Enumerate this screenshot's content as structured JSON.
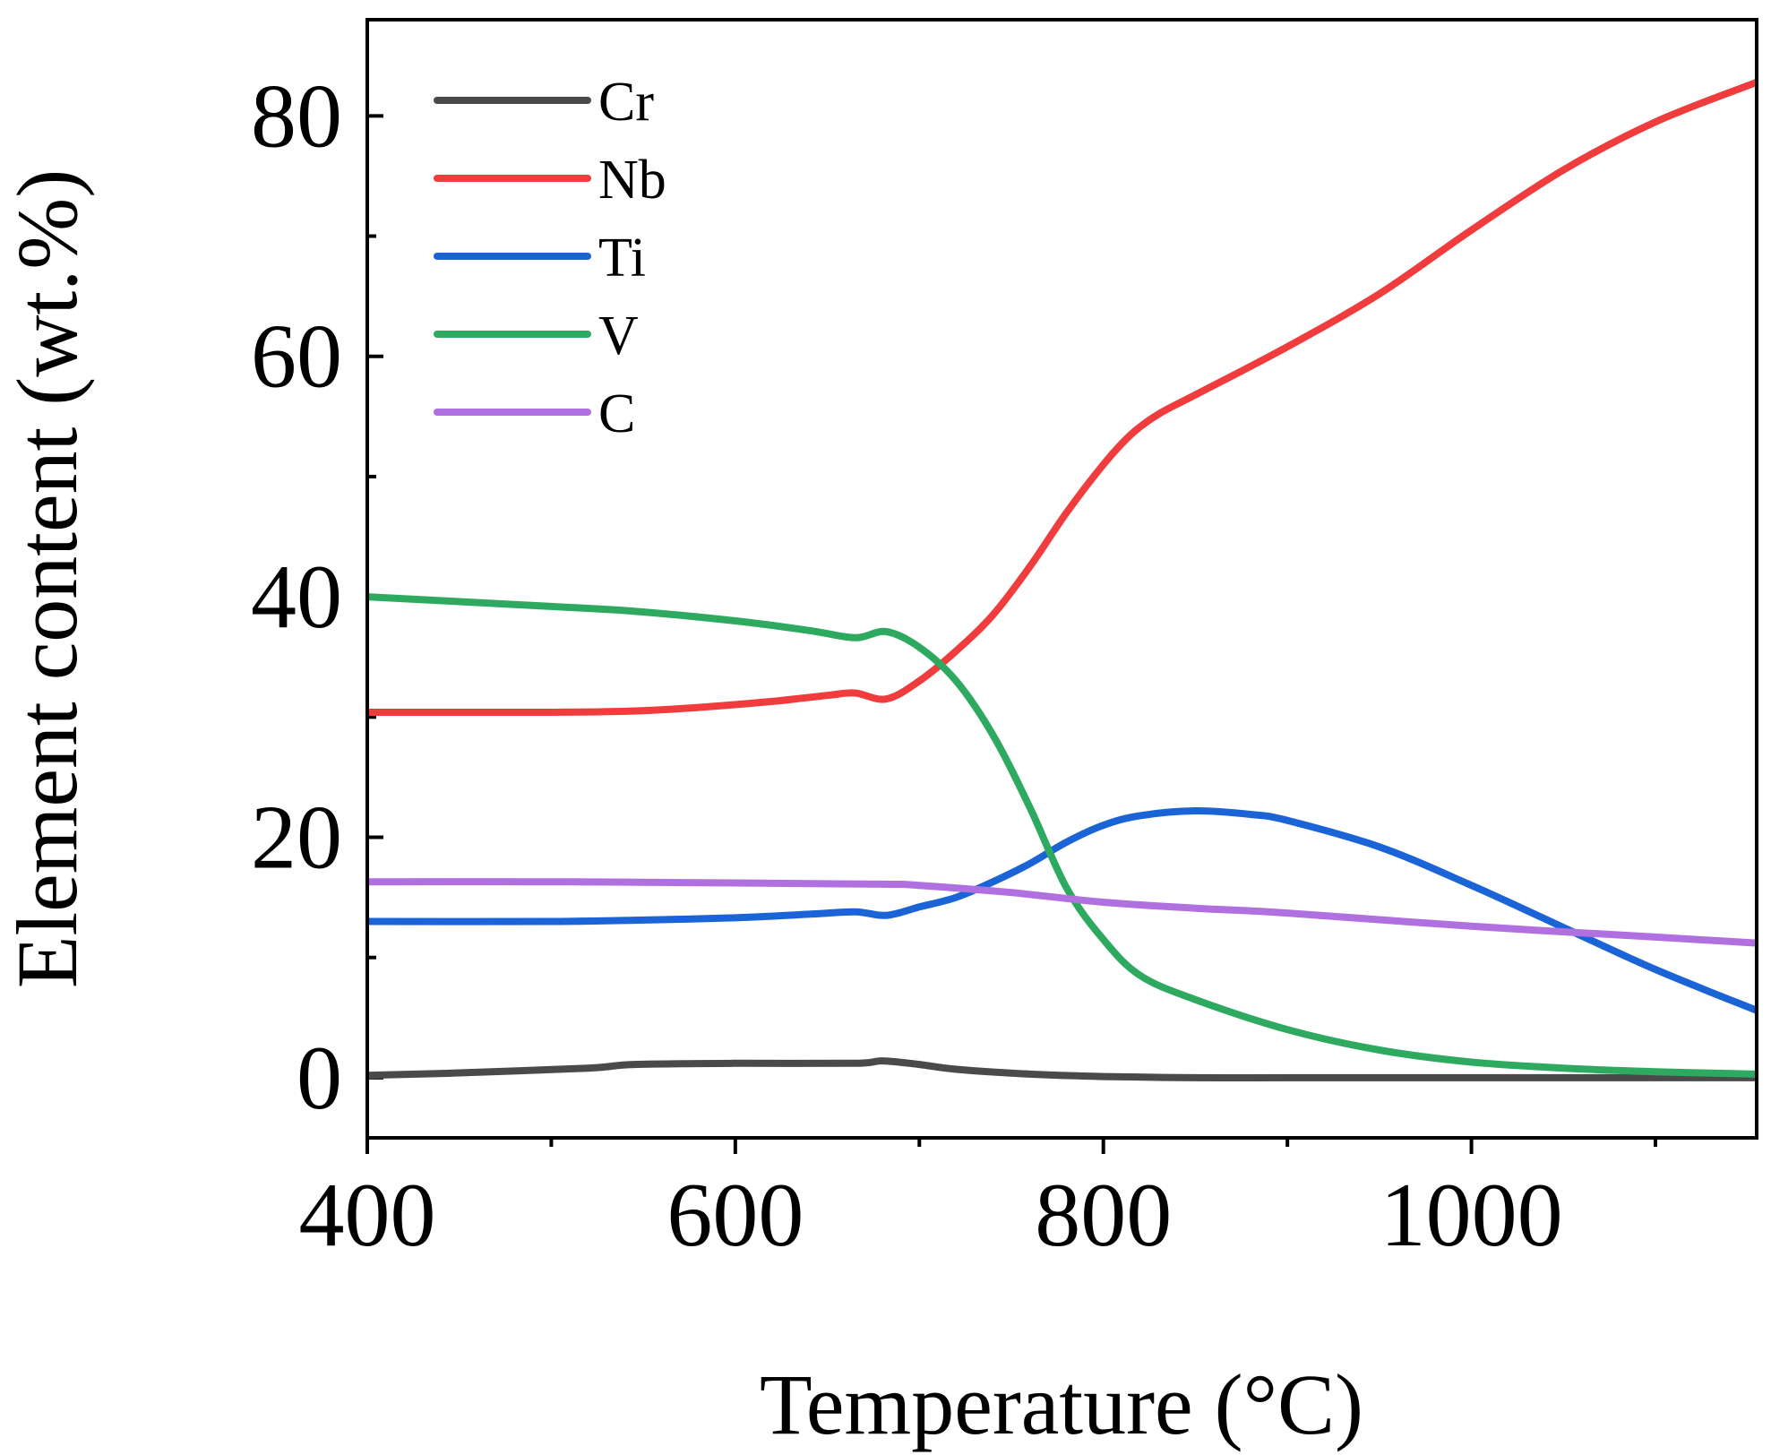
{
  "chart_data": {
    "type": "line",
    "title": "",
    "xlabel": "Temperature (°C)",
    "ylabel": "Element content (wt.%)",
    "xlim": [
      400,
      1155
    ],
    "ylim": [
      -5,
      88
    ],
    "xticks_major": [
      400,
      600,
      800,
      1000
    ],
    "xticks_minor": [
      500,
      700,
      900,
      1100
    ],
    "yticks_major": [
      0,
      20,
      40,
      60,
      80
    ],
    "yticks_minor": [
      10,
      30,
      50,
      70
    ],
    "legend_position": "top-left",
    "grid": false,
    "series": [
      {
        "name": "Cr",
        "color": "#4a4a4a",
        "x": [
          400,
          450,
          520,
          545,
          600,
          665,
          680,
          700,
          720,
          760,
          800,
          850,
          900,
          1000,
          1155
        ],
        "y": [
          0.2,
          0.4,
          0.8,
          1.1,
          1.2,
          1.2,
          1.4,
          1.1,
          0.7,
          0.3,
          0.1,
          0.0,
          0.0,
          0.0,
          0.0
        ]
      },
      {
        "name": "Nb",
        "color": "#f03c3c",
        "x": [
          400,
          450,
          500,
          545,
          580,
          620,
          650,
          665,
          682,
          700,
          720,
          740,
          760,
          780,
          800,
          815,
          830,
          850,
          900,
          950,
          1000,
          1050,
          1100,
          1155
        ],
        "y": [
          30.4,
          30.4,
          30.4,
          30.5,
          30.8,
          31.3,
          31.8,
          32.0,
          31.5,
          33.0,
          35.5,
          38.5,
          42.5,
          47.0,
          51.0,
          53.5,
          55.2,
          56.8,
          60.8,
          65.2,
          70.5,
          75.5,
          79.5,
          82.8
        ]
      },
      {
        "name": "Ti",
        "color": "#1a64d8",
        "x": [
          400,
          500,
          545,
          600,
          640,
          665,
          682,
          700,
          720,
          740,
          760,
          780,
          800,
          820,
          850,
          880,
          900,
          950,
          1000,
          1050,
          1100,
          1155
        ],
        "y": [
          13.0,
          13.0,
          13.1,
          13.3,
          13.6,
          13.8,
          13.5,
          14.2,
          15.0,
          16.3,
          17.8,
          19.6,
          21.0,
          21.8,
          22.2,
          21.9,
          21.4,
          19.2,
          16.0,
          12.5,
          9.0,
          5.6
        ]
      },
      {
        "name": "V",
        "color": "#2eaa60",
        "x": [
          400,
          450,
          500,
          545,
          600,
          640,
          665,
          682,
          700,
          720,
          740,
          760,
          780,
          800,
          820,
          850,
          900,
          950,
          1000,
          1050,
          1100,
          1155
        ],
        "y": [
          40.0,
          39.6,
          39.2,
          38.8,
          38.0,
          37.2,
          36.6,
          37.1,
          35.8,
          33.0,
          28.5,
          22.5,
          15.8,
          11.5,
          8.5,
          6.5,
          4.0,
          2.3,
          1.3,
          0.8,
          0.5,
          0.3
        ]
      },
      {
        "name": "C",
        "color": "#b070e0",
        "x": [
          400,
          500,
          600,
          680,
          700,
          750,
          800,
          850,
          900,
          1000,
          1100,
          1155
        ],
        "y": [
          16.3,
          16.3,
          16.2,
          16.1,
          16.0,
          15.4,
          14.6,
          14.1,
          13.7,
          12.6,
          11.7,
          11.2
        ]
      }
    ]
  }
}
